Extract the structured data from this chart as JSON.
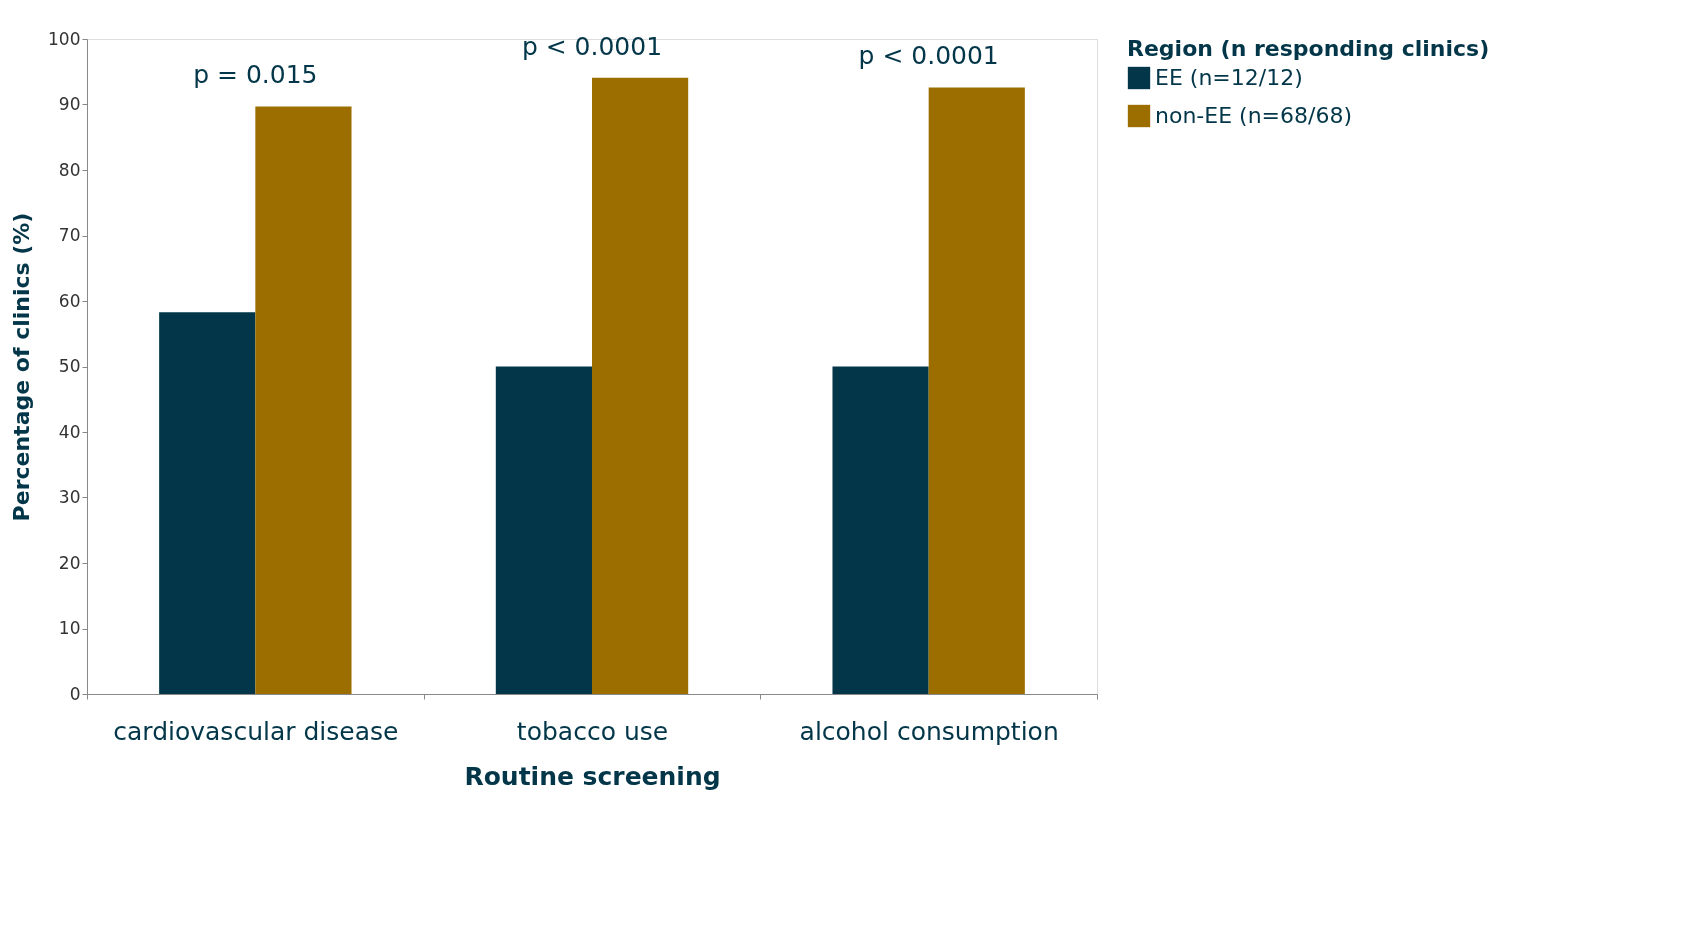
{
  "chart_data": {
    "type": "bar",
    "xlabel": "Routine screening",
    "ylabel": "Percentage of clinics (%)",
    "legend_title": "Region (n responding clinics)",
    "categories": [
      "cardiovascular disease",
      "tobacco use",
      "alcohol consumption"
    ],
    "series": [
      {
        "name": "EE (n=12/12)",
        "color": "#023648",
        "values": [
          58.3,
          50,
          50
        ]
      },
      {
        "name": "non-EE (n=68/68)",
        "color": "#9c6e00",
        "values": [
          89.7,
          94.1,
          92.6
        ]
      }
    ],
    "ylim": [
      0,
      100
    ],
    "yticks": [
      0,
      10,
      20,
      30,
      40,
      50,
      60,
      70,
      80,
      90,
      100
    ],
    "grid": false,
    "legend": "right",
    "annotations": [
      {
        "text": "p = 0.015",
        "x": "cardiovascular disease",
        "y": 89.7
      },
      {
        "text": "p < 0.0001",
        "x": "tobacco use",
        "y": 94.1
      },
      {
        "text": "p < 0.0001",
        "x": "alcohol consumption",
        "y": 92.6
      }
    ]
  }
}
